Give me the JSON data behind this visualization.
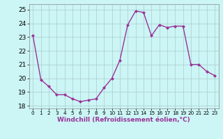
{
  "x": [
    0,
    1,
    2,
    3,
    4,
    5,
    6,
    7,
    8,
    9,
    10,
    11,
    12,
    13,
    14,
    15,
    16,
    17,
    18,
    19,
    20,
    21,
    22,
    23
  ],
  "y": [
    23.1,
    19.9,
    19.4,
    18.8,
    18.8,
    18.5,
    18.3,
    18.4,
    18.5,
    19.3,
    20.0,
    21.3,
    23.9,
    24.9,
    24.8,
    23.1,
    23.9,
    23.7,
    23.8,
    23.8,
    21.0,
    21.0,
    20.5,
    20.2
  ],
  "color": "#993399",
  "bg_color": "#ccf5f5",
  "grid_color": "#aacccc",
  "xlabel": "Windchill (Refroidissement éolien,°C)",
  "ylim": [
    17.8,
    25.4
  ],
  "xlim": [
    -0.5,
    23.5
  ],
  "yticks": [
    18,
    19,
    20,
    21,
    22,
    23,
    24,
    25
  ],
  "xticks": [
    0,
    1,
    2,
    3,
    4,
    5,
    6,
    7,
    8,
    9,
    10,
    11,
    12,
    13,
    14,
    15,
    16,
    17,
    18,
    19,
    20,
    21,
    22,
    23
  ],
  "xtick_labels": [
    "0",
    "1",
    "2",
    "3",
    "4",
    "5",
    "6",
    "7",
    "8",
    "9",
    "10",
    "11",
    "12",
    "13",
    "14",
    "15",
    "16",
    "17",
    "18",
    "19",
    "20",
    "21",
    "22",
    "23"
  ],
  "marker": "D",
  "marker_size": 2.0,
  "line_width": 1.0
}
